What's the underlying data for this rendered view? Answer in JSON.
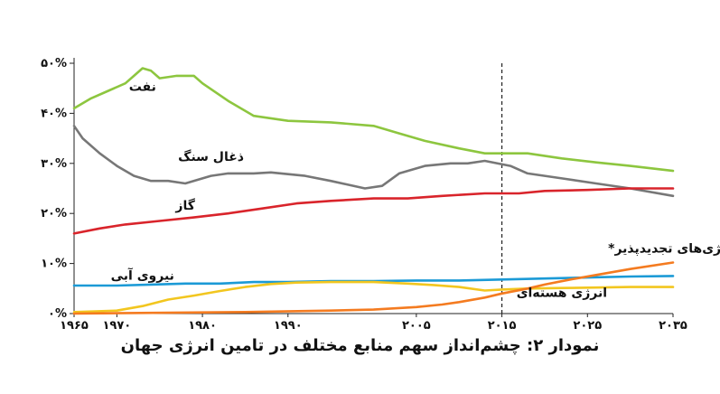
{
  "caption": "نمودار ۲: چشم‌انداز سهم منابع مختلف در تامین انرژی جهان",
  "chart_data": {
    "type": "line",
    "xlim": [
      1965,
      2035
    ],
    "ylim": [
      0,
      50
    ],
    "x_ticks": [
      1965,
      1970,
      1980,
      1990,
      2005,
      2015,
      2025,
      2035
    ],
    "x_tick_labels": [
      "۱۹۶۵",
      "۱۹۷۰",
      "۱۹۸۰",
      "۱۹۹۰",
      "۲۰۰۵",
      "۲۰۱۵",
      "۲۰۲۵",
      "۲۰۳۵"
    ],
    "y_ticks": [
      0,
      10,
      20,
      30,
      40,
      50
    ],
    "y_tick_labels": [
      "۰%",
      "۱۰%",
      "۲۰%",
      "۳۰%",
      "۴۰%",
      "۵۰%"
    ],
    "forecast_divider_x": 2015,
    "series": [
      {
        "name": "نفت",
        "color": "#8dc63f",
        "label_anchor": [
          1973,
          44.5
        ],
        "points": [
          [
            1965,
            41
          ],
          [
            1967,
            43
          ],
          [
            1969,
            44.5
          ],
          [
            1971,
            46
          ],
          [
            1972,
            47.5
          ],
          [
            1973,
            49
          ],
          [
            1974,
            48.5
          ],
          [
            1975,
            47
          ],
          [
            1977,
            47.5
          ],
          [
            1979,
            47.5
          ],
          [
            1980,
            46
          ],
          [
            1983,
            42.5
          ],
          [
            1986,
            39.5
          ],
          [
            1990,
            38.5
          ],
          [
            1995,
            38.2
          ],
          [
            2000,
            37.5
          ],
          [
            2003,
            36
          ],
          [
            2006,
            34.5
          ],
          [
            2010,
            33
          ],
          [
            2013,
            32
          ],
          [
            2015,
            32
          ],
          [
            2018,
            32
          ],
          [
            2022,
            31
          ],
          [
            2026,
            30.2
          ],
          [
            2030,
            29.5
          ],
          [
            2035,
            28.5
          ]
        ]
      },
      {
        "name": "ذغال سنگ",
        "color": "#777777",
        "label_anchor": [
          1981,
          30.5
        ],
        "points": [
          [
            1965,
            37.5
          ],
          [
            1966,
            35
          ],
          [
            1968,
            32
          ],
          [
            1970,
            29.5
          ],
          [
            1972,
            27.5
          ],
          [
            1974,
            26.5
          ],
          [
            1976,
            26.5
          ],
          [
            1978,
            26
          ],
          [
            1981,
            27.5
          ],
          [
            1983,
            28
          ],
          [
            1986,
            28
          ],
          [
            1988,
            28.2
          ],
          [
            1992,
            27.5
          ],
          [
            1995,
            26.5
          ],
          [
            1999,
            25
          ],
          [
            2001,
            25.5
          ],
          [
            2003,
            28
          ],
          [
            2006,
            29.5
          ],
          [
            2009,
            30
          ],
          [
            2011,
            30
          ],
          [
            2013,
            30.5
          ],
          [
            2016,
            29.5
          ],
          [
            2018,
            28
          ],
          [
            2022,
            27
          ],
          [
            2026,
            26
          ],
          [
            2030,
            25
          ],
          [
            2035,
            23.5
          ]
        ]
      },
      {
        "name": "گاز",
        "color": "#d9242b",
        "label_anchor": [
          1978,
          20.8
        ],
        "points": [
          [
            1965,
            16
          ],
          [
            1968,
            17
          ],
          [
            1971,
            17.8
          ],
          [
            1975,
            18.5
          ],
          [
            1979,
            19.2
          ],
          [
            1983,
            20
          ],
          [
            1987,
            21
          ],
          [
            1991,
            22
          ],
          [
            1995,
            22.5
          ],
          [
            2000,
            23
          ],
          [
            2004,
            23
          ],
          [
            2008,
            23.5
          ],
          [
            2013,
            24
          ],
          [
            2017,
            24
          ],
          [
            2020,
            24.5
          ],
          [
            2025,
            24.7
          ],
          [
            2030,
            25
          ],
          [
            2035,
            25
          ]
        ]
      },
      {
        "name": "نیروی آبی",
        "color": "#1b9ad6",
        "label_anchor": [
          1973,
          6.8
        ],
        "points": [
          [
            1965,
            5.6
          ],
          [
            1970,
            5.6
          ],
          [
            1974,
            5.8
          ],
          [
            1978,
            6
          ],
          [
            1982,
            6
          ],
          [
            1986,
            6.3
          ],
          [
            1990,
            6.3
          ],
          [
            1995,
            6.5
          ],
          [
            2000,
            6.5
          ],
          [
            2005,
            6.6
          ],
          [
            2010,
            6.6
          ],
          [
            2015,
            6.8
          ],
          [
            2020,
            7
          ],
          [
            2025,
            7.2
          ],
          [
            2030,
            7.4
          ],
          [
            2035,
            7.5
          ]
        ]
      },
      {
        "name": "انرژی هسته‌ای",
        "color": "#f2c61f",
        "label_anchor": [
          2022,
          3.3
        ],
        "points": [
          [
            1965,
            0.3
          ],
          [
            1970,
            0.6
          ],
          [
            1973,
            1.5
          ],
          [
            1976,
            2.8
          ],
          [
            1979,
            3.6
          ],
          [
            1982,
            4.5
          ],
          [
            1985,
            5.3
          ],
          [
            1988,
            5.9
          ],
          [
            1991,
            6.2
          ],
          [
            1995,
            6.3
          ],
          [
            2000,
            6.3
          ],
          [
            2004,
            6
          ],
          [
            2007,
            5.7
          ],
          [
            2010,
            5.3
          ],
          [
            2013,
            4.6
          ],
          [
            2015,
            4.8
          ],
          [
            2018,
            5
          ],
          [
            2022,
            5.1
          ],
          [
            2026,
            5.2
          ],
          [
            2030,
            5.3
          ],
          [
            2035,
            5.3
          ]
        ]
      },
      {
        "name": "انرژی‌های تجدیدپذیر*",
        "color": "#f47b20",
        "label_anchor": [
          2035,
          12.2
        ],
        "points": [
          [
            1965,
            0
          ],
          [
            1985,
            0.3
          ],
          [
            1995,
            0.6
          ],
          [
            2000,
            0.8
          ],
          [
            2005,
            1.3
          ],
          [
            2008,
            1.8
          ],
          [
            2010,
            2.3
          ],
          [
            2013,
            3.2
          ],
          [
            2015,
            4
          ],
          [
            2018,
            5
          ],
          [
            2020,
            5.8
          ],
          [
            2023,
            6.8
          ],
          [
            2026,
            7.7
          ],
          [
            2030,
            8.9
          ],
          [
            2035,
            10.2
          ]
        ]
      }
    ]
  }
}
